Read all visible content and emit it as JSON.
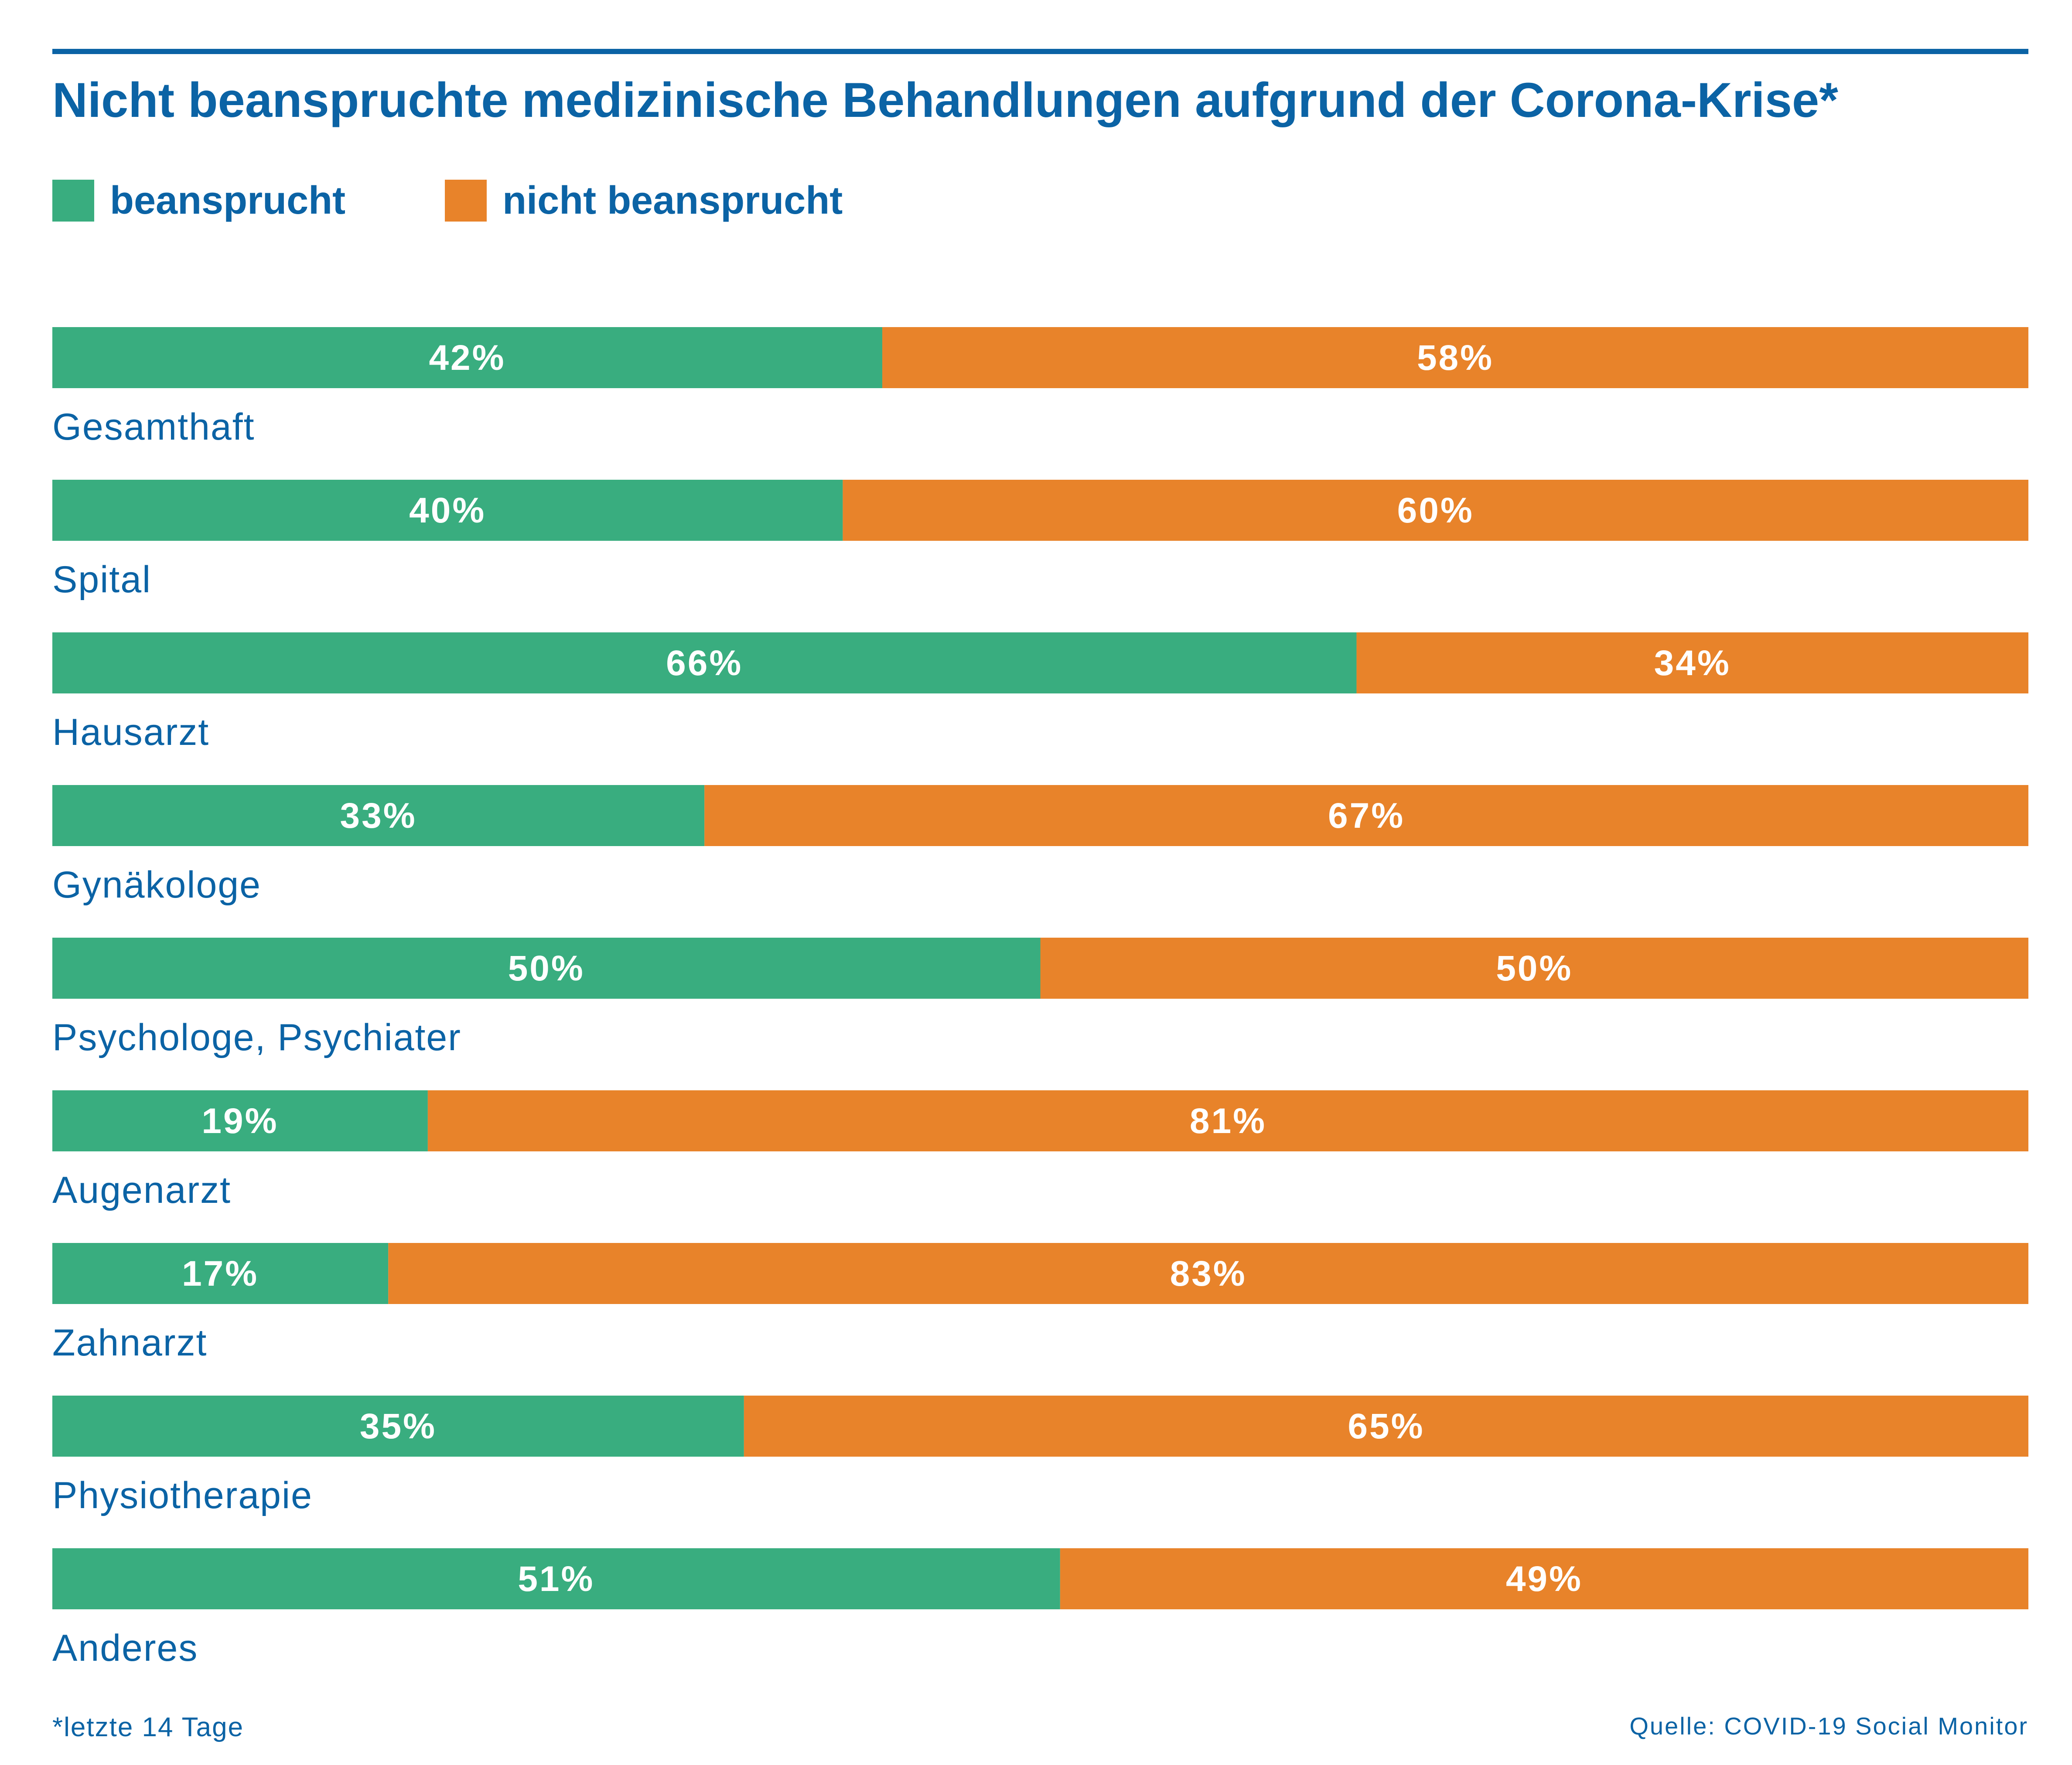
{
  "chart_data": {
    "type": "bar",
    "orientation": "horizontal",
    "stacked": true,
    "title": "Nicht beanspruchte medizinische Behandlungen aufgrund der Corona-Krise*",
    "categories": [
      "Gesamthaft",
      "Spital",
      "Hausarzt",
      "Gynäkologe",
      "Psychologe, Psychiater",
      "Augenarzt",
      "Zahnarzt",
      "Physiotherapie",
      "Anderes"
    ],
    "series": [
      {
        "name": "beansprucht",
        "color": "#39ad7f",
        "values": [
          42,
          40,
          66,
          33,
          50,
          19,
          17,
          35,
          51
        ],
        "labels": [
          "42%",
          "40%",
          "66%",
          "33%",
          "50%",
          "19%",
          "17%",
          "35%",
          "51%"
        ]
      },
      {
        "name": "nicht beansprucht",
        "color": "#e8832a",
        "values": [
          58,
          60,
          34,
          67,
          50,
          81,
          83,
          65,
          49
        ],
        "labels": [
          "58%",
          "60%",
          "34%",
          "67%",
          "50%",
          "81%",
          "83%",
          "65%",
          "49%"
        ]
      }
    ],
    "xlim": [
      0,
      100
    ],
    "legend": "top-left",
    "grid": false
  },
  "footnote": "*letzte 14 Tage",
  "source": "Quelle: COVID-19 Social Monitor",
  "colors": {
    "accent": "#0b63a5",
    "label_text": "#ffffff"
  }
}
